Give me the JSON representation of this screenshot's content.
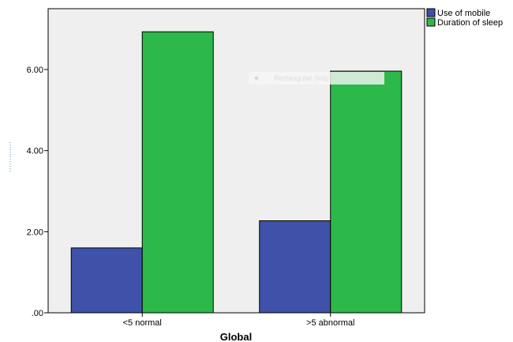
{
  "chart_data": {
    "type": "bar",
    "categories": [
      "<5 normal",
      ">5 abnormal"
    ],
    "series": [
      {
        "name": "Use of mobile",
        "color": "#3f51a8",
        "values": [
          1.6,
          2.27
        ]
      },
      {
        "name": "Duration of sleep",
        "color": "#2db84a",
        "values": [
          6.93,
          5.96
        ]
      }
    ],
    "xlabel": "Global",
    "ylabel": "",
    "ylim": [
      0,
      7.5
    ],
    "yticks": [
      0,
      2,
      4,
      6
    ],
    "ytick_labels": [
      ".00",
      "2.00",
      "4.00",
      "6.00"
    ],
    "grid": false,
    "legend_position": "top-right",
    "plot_background": "#efefef"
  },
  "watermark": {
    "text": "Rectangular Snip",
    "icon": "record-icon"
  }
}
